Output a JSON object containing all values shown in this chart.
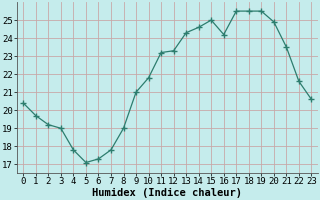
{
  "x": [
    0,
    1,
    2,
    3,
    4,
    5,
    6,
    7,
    8,
    9,
    10,
    11,
    12,
    13,
    14,
    15,
    16,
    17,
    18,
    19,
    20,
    21,
    22,
    23
  ],
  "y": [
    20.4,
    19.7,
    19.2,
    19.0,
    17.8,
    17.1,
    17.3,
    17.8,
    19.0,
    21.0,
    21.8,
    23.2,
    23.3,
    24.3,
    24.6,
    25.0,
    24.2,
    25.5,
    25.5,
    25.5,
    24.9,
    23.5,
    21.6,
    20.6
  ],
  "xlabel": "Humidex (Indice chaleur)",
  "xlim": [
    -0.5,
    23.5
  ],
  "ylim": [
    16.5,
    26.0
  ],
  "yticks": [
    17,
    18,
    19,
    20,
    21,
    22,
    23,
    24,
    25
  ],
  "xtick_labels": [
    "0",
    "1",
    "2",
    "3",
    "4",
    "5",
    "6",
    "7",
    "8",
    "9",
    "10",
    "11",
    "12",
    "13",
    "14",
    "15",
    "16",
    "17",
    "18",
    "19",
    "20",
    "21",
    "22",
    "23"
  ],
  "line_color": "#2d7d6e",
  "marker_color": "#2d7d6e",
  "bg_color": "#c5ecec",
  "grid_color": "#c8a8a8",
  "xlabel_fontsize": 7.5,
  "tick_fontsize": 6.5
}
